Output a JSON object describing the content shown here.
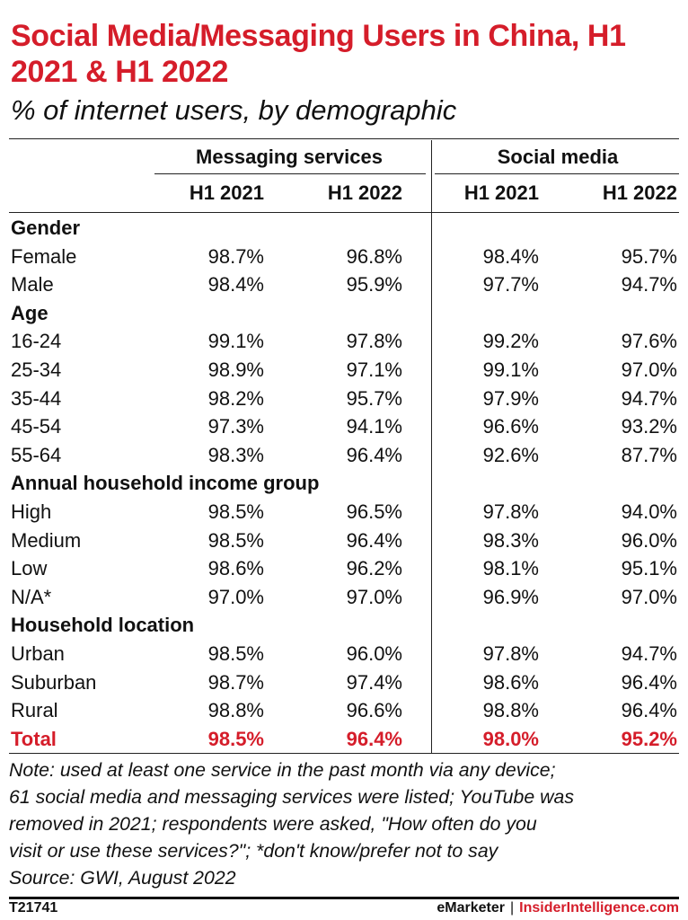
{
  "title": "Social Media/Messaging Users in China, H1 2021 & H1 2022",
  "subtitle": "% of internet users, by demographic",
  "colors": {
    "accent": "#d51d2a",
    "text": "#111111",
    "rule": "#222222"
  },
  "column_groups": [
    "Messaging services",
    "Social media"
  ],
  "column_headers": [
    "H1 2021",
    "H1 2022",
    "H1 2021",
    "H1 2022"
  ],
  "chart_data": {
    "type": "table",
    "title": "Social Media/Messaging Users in China, H1 2021 & H1 2022",
    "subtitle": "% of internet users, by demographic",
    "column_groups": [
      "Messaging services",
      "Social media"
    ],
    "columns": [
      "H1 2021",
      "H1 2022",
      "H1 2021",
      "H1 2022"
    ],
    "rows": [
      {
        "label": "Gender",
        "section": true
      },
      {
        "label": "Female",
        "values": [
          "98.7%",
          "96.8%",
          "98.4%",
          "95.7%"
        ]
      },
      {
        "label": "Male",
        "values": [
          "98.4%",
          "95.9%",
          "97.7%",
          "94.7%"
        ]
      },
      {
        "label": "Age",
        "section": true
      },
      {
        "label": "16-24",
        "values": [
          "99.1%",
          "97.8%",
          "99.2%",
          "97.6%"
        ]
      },
      {
        "label": "25-34",
        "values": [
          "98.9%",
          "97.1%",
          "99.1%",
          "97.0%"
        ]
      },
      {
        "label": "35-44",
        "values": [
          "98.2%",
          "95.7%",
          "97.9%",
          "94.7%"
        ]
      },
      {
        "label": "45-54",
        "values": [
          "97.3%",
          "94.1%",
          "96.6%",
          "93.2%"
        ]
      },
      {
        "label": "55-64",
        "values": [
          "98.3%",
          "96.4%",
          "92.6%",
          "87.7%"
        ]
      },
      {
        "label": "Annual household income group",
        "section": true
      },
      {
        "label": "High",
        "values": [
          "98.5%",
          "96.5%",
          "97.8%",
          "94.0%"
        ]
      },
      {
        "label": "Medium",
        "values": [
          "98.5%",
          "96.4%",
          "98.3%",
          "96.0%"
        ]
      },
      {
        "label": "Low",
        "values": [
          "98.6%",
          "96.2%",
          "98.1%",
          "95.1%"
        ]
      },
      {
        "label": "N/A*",
        "values": [
          "97.0%",
          "97.0%",
          "96.9%",
          "97.0%"
        ]
      },
      {
        "label": "Household location",
        "section": true
      },
      {
        "label": "Urban",
        "values": [
          "98.5%",
          "96.0%",
          "97.8%",
          "94.7%"
        ]
      },
      {
        "label": "Suburban",
        "values": [
          "98.7%",
          "97.4%",
          "98.6%",
          "96.4%"
        ]
      },
      {
        "label": "Rural",
        "values": [
          "98.8%",
          "96.6%",
          "98.8%",
          "96.4%"
        ]
      },
      {
        "label": "Total",
        "values": [
          "98.5%",
          "96.4%",
          "98.0%",
          "95.2%"
        ],
        "total": true
      }
    ]
  },
  "note_lines": [
    "Note: used at least one service in the past month via any device;",
    "61 social media and messaging services were listed; YouTube was",
    "removed in 2021; respondents were asked, \"How often do you",
    "visit or use these services?\"; *don't know/prefer not to say",
    "Source: GWI, August 2022"
  ],
  "footer": {
    "chart_id": "T21741",
    "brand": "eMarketer",
    "separator": "|",
    "site": "InsiderIntelligence.com"
  }
}
